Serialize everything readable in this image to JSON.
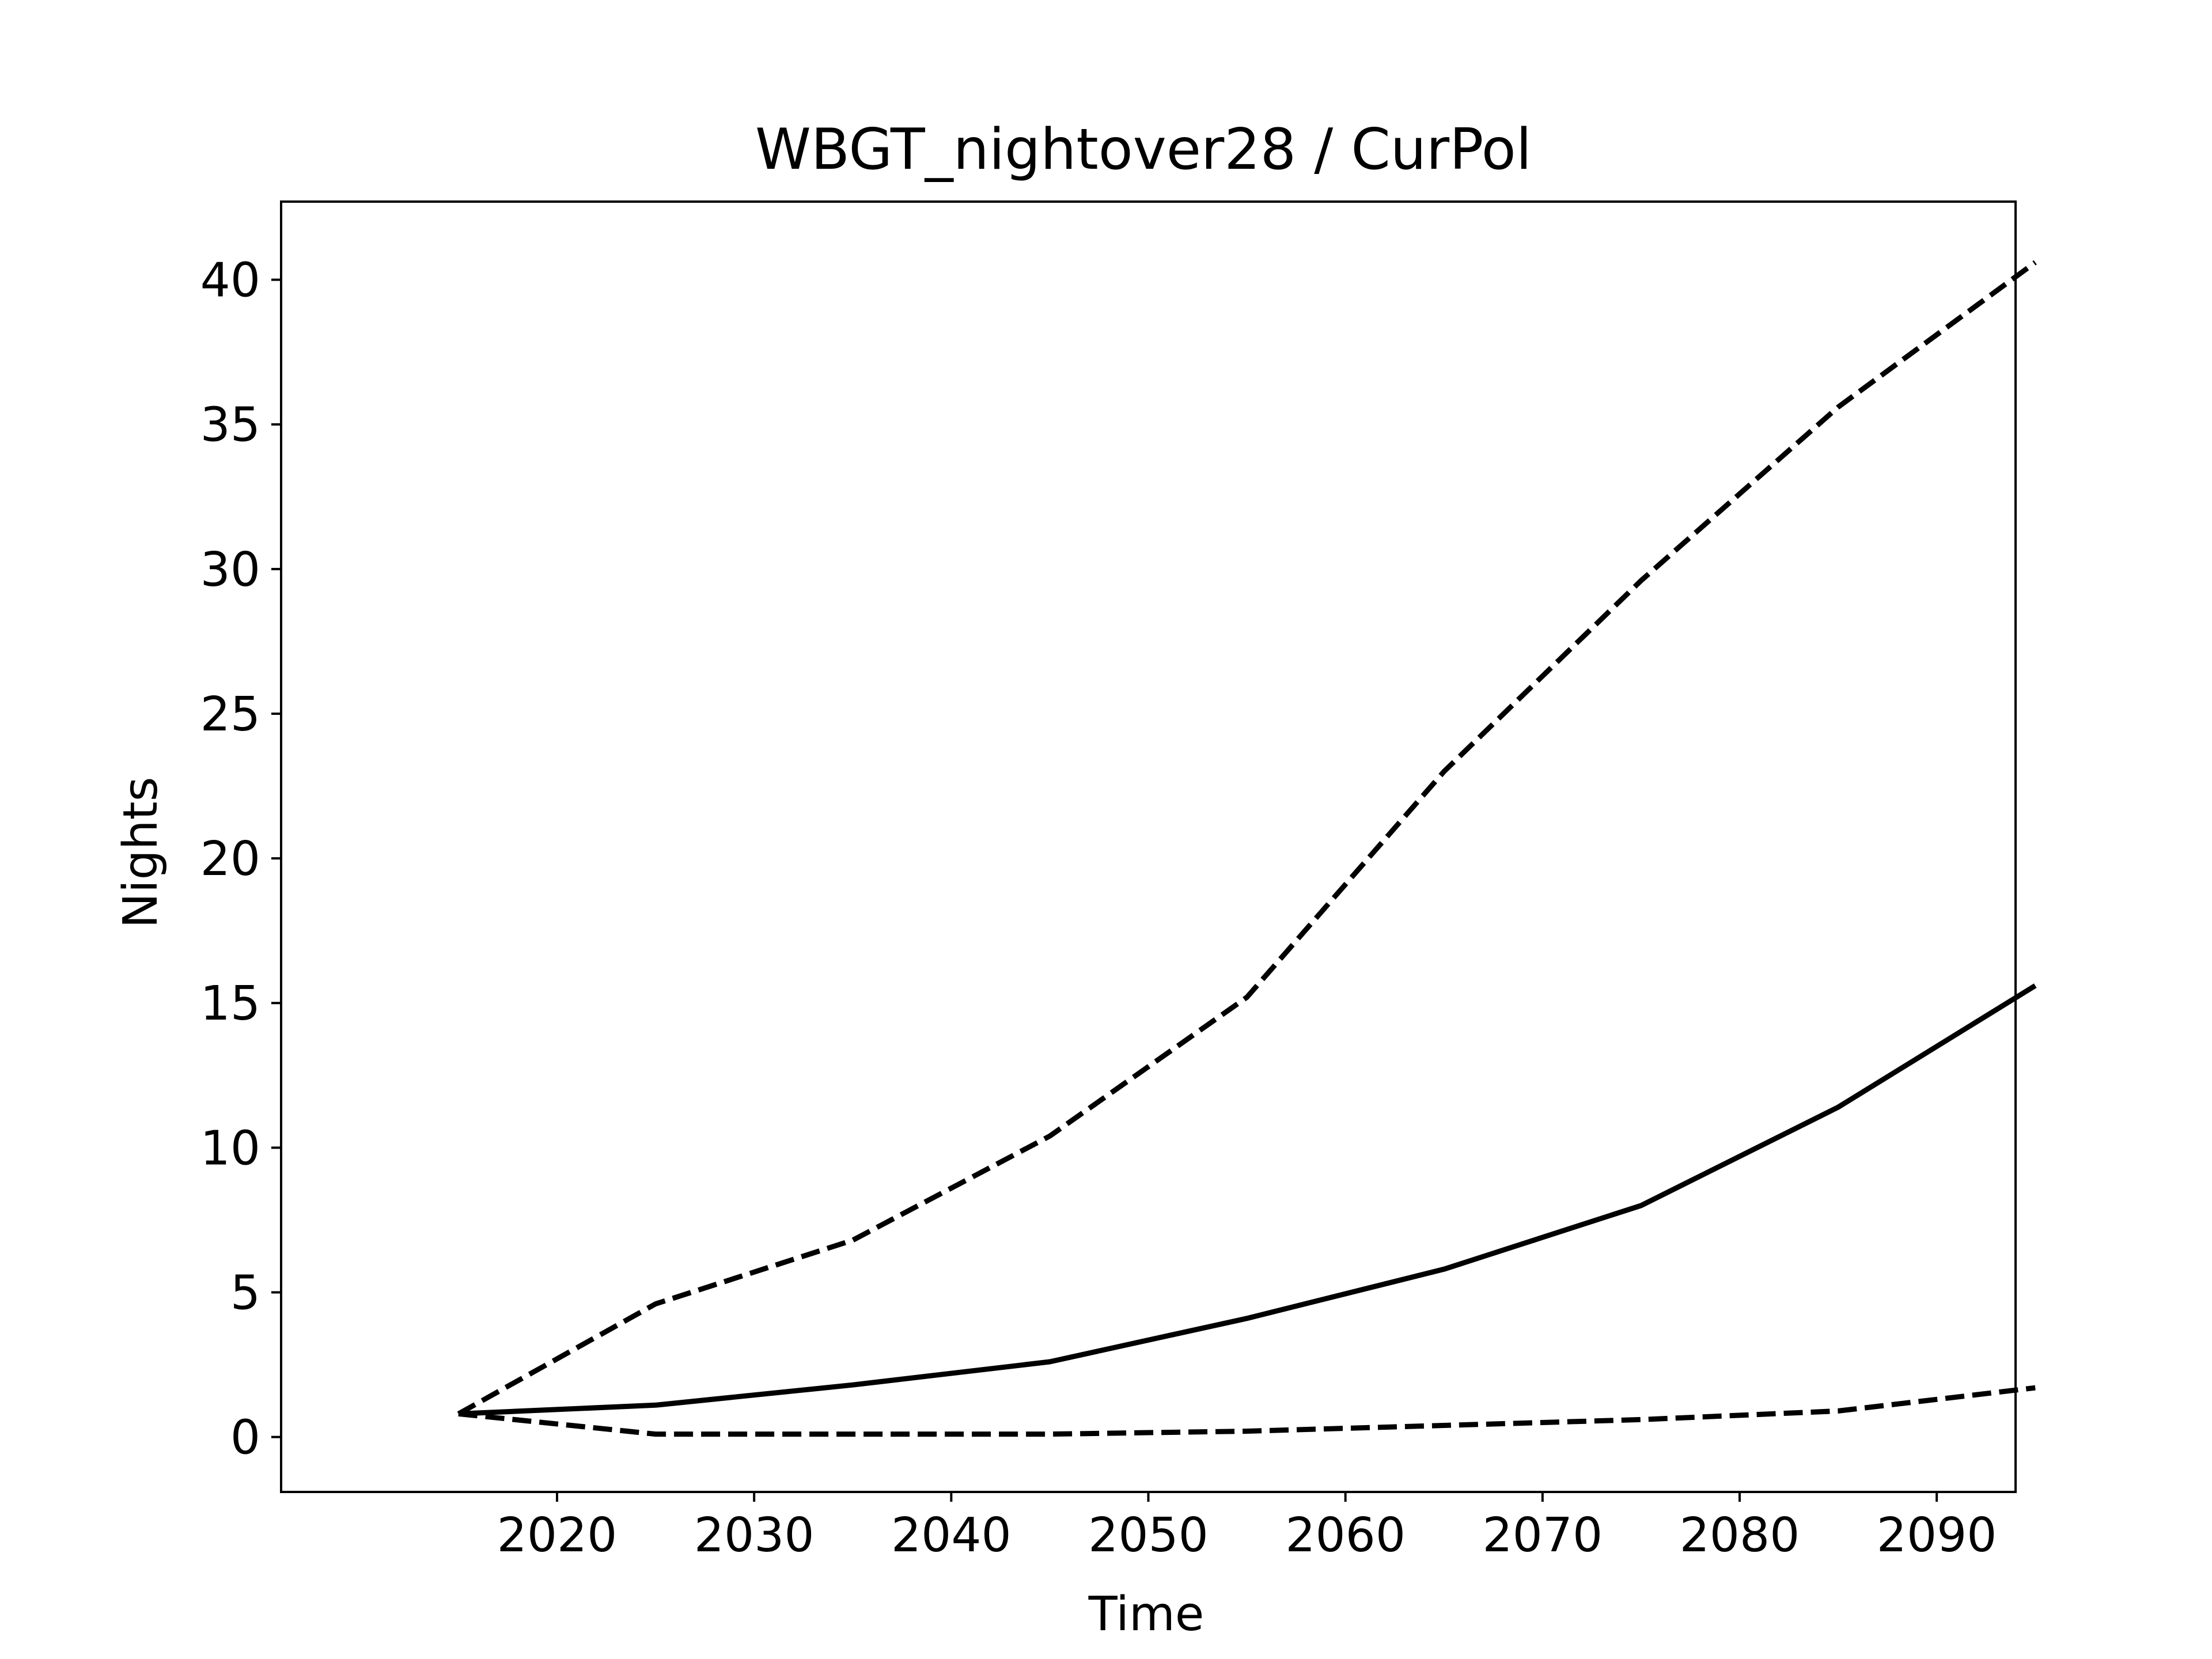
{
  "chart_data": {
    "type": "line",
    "title": "WBGT_nightover28 / CurPol",
    "xlabel": "Time",
    "ylabel": "Nights",
    "x": [
      2015,
      2025,
      2035,
      2045,
      2055,
      2065,
      2075,
      2085,
      2095
    ],
    "xlim": [
      2006,
      2094
    ],
    "ylim": [
      -1.9,
      42.7
    ],
    "xticks": [
      2020,
      2030,
      2040,
      2050,
      2060,
      2070,
      2080,
      2090
    ],
    "xtick_labels": [
      "2020",
      "2030",
      "2040",
      "2050",
      "2060",
      "2070",
      "2080",
      "2090"
    ],
    "yticks": [
      0,
      5,
      10,
      15,
      20,
      25,
      30,
      35,
      40
    ],
    "ytick_labels": [
      "0",
      "5",
      "10",
      "15",
      "20",
      "25",
      "30",
      "35",
      "40"
    ],
    "grid": false,
    "series": [
      {
        "style": "dashed",
        "color": "#000000",
        "values": [
          0.8,
          4.6,
          6.8,
          10.4,
          15.2,
          23.0,
          29.6,
          35.6,
          40.6
        ]
      },
      {
        "style": "solid",
        "color": "#000000",
        "values": [
          0.8,
          1.1,
          1.8,
          2.6,
          4.1,
          5.8,
          8.0,
          11.4,
          15.6
        ]
      },
      {
        "style": "dashed",
        "color": "#000000",
        "values": [
          0.8,
          0.1,
          0.1,
          0.1,
          0.2,
          0.4,
          0.6,
          0.9,
          1.7
        ]
      }
    ]
  }
}
